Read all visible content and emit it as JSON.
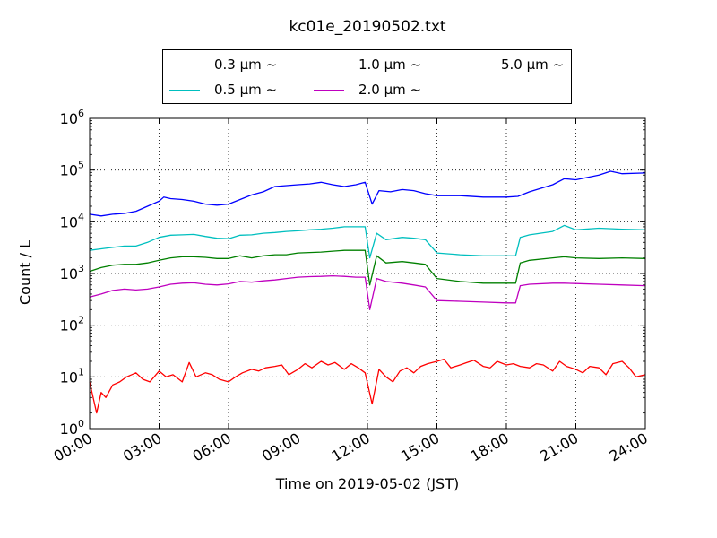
{
  "chart_data": {
    "type": "line",
    "title": "kc01e_20190502.txt",
    "xlabel": "Time on 2019-05-02 (JST)",
    "ylabel": "Count / L",
    "yscale": "log",
    "ylim": [
      1,
      1000000
    ],
    "xlim": [
      "00:00",
      "24:00"
    ],
    "x_unit": "hours",
    "xticks": [
      "00:00",
      "03:00",
      "06:00",
      "09:00",
      "12:00",
      "15:00",
      "18:00",
      "21:00",
      "24:00"
    ],
    "yticks": [
      {
        "base": "10",
        "exp": "0",
        "value": 1
      },
      {
        "base": "10",
        "exp": "1",
        "value": 10
      },
      {
        "base": "10",
        "exp": "2",
        "value": 100
      },
      {
        "base": "10",
        "exp": "3",
        "value": 1000
      },
      {
        "base": "10",
        "exp": "4",
        "value": 10000
      },
      {
        "base": "10",
        "exp": "5",
        "value": 100000
      },
      {
        "base": "10",
        "exp": "6",
        "value": 1000000
      }
    ],
    "grid": true,
    "legend_position": "top",
    "series": [
      {
        "name": "0.3 μm ~",
        "color": "#0000ff",
        "x_hours": [
          0,
          0.5,
          1,
          1.5,
          2,
          2.5,
          3,
          3.2,
          3.5,
          4,
          4.5,
          5,
          5.5,
          6,
          6.5,
          7,
          7.5,
          8,
          8.5,
          9,
          9.5,
          10,
          10.5,
          11,
          11.5,
          11.9,
          12.2,
          12.5,
          13,
          13.5,
          14,
          14.5,
          15,
          16,
          17,
          18,
          18.5,
          19,
          20,
          20.5,
          21,
          22,
          22.5,
          23,
          24
        ],
        "values": [
          14000,
          13000,
          14000,
          14500,
          16000,
          20000,
          25000,
          30000,
          28000,
          27000,
          25000,
          22000,
          21000,
          22000,
          27000,
          33000,
          38000,
          48000,
          50000,
          52000,
          54000,
          58000,
          52000,
          48000,
          52000,
          58000,
          22000,
          40000,
          38000,
          42000,
          40000,
          35000,
          32000,
          32000,
          30000,
          30000,
          31000,
          38000,
          52000,
          68000,
          65000,
          80000,
          95000,
          85000,
          88000
        ]
      },
      {
        "name": "1.0 μm ~",
        "color": "#008000",
        "x_hours": [
          0,
          0.5,
          1,
          1.5,
          2,
          2.5,
          3,
          3.5,
          4,
          4.5,
          5,
          5.5,
          6,
          6.5,
          7,
          7.5,
          8,
          8.5,
          9,
          9.5,
          10,
          10.5,
          11,
          11.5,
          11.9,
          12.1,
          12.4,
          12.8,
          13.5,
          14,
          14.5,
          15,
          16,
          17,
          18,
          18.4,
          18.6,
          19,
          20,
          20.5,
          21,
          22,
          23,
          24
        ],
        "values": [
          1100,
          1300,
          1450,
          1500,
          1500,
          1600,
          1800,
          2000,
          2100,
          2100,
          2050,
          1950,
          1950,
          2200,
          2000,
          2200,
          2300,
          2300,
          2500,
          2550,
          2600,
          2700,
          2800,
          2800,
          2800,
          600,
          2200,
          1600,
          1700,
          1600,
          1500,
          800,
          700,
          650,
          650,
          650,
          1600,
          1800,
          2000,
          2100,
          2000,
          1950,
          2000,
          1950
        ]
      },
      {
        "name": "0.5 μm ~",
        "color": "#00bfbf",
        "x_hours": [
          0,
          0.5,
          1,
          1.5,
          2,
          2.5,
          3,
          3.5,
          4,
          4.5,
          5,
          5.5,
          6,
          6.5,
          7,
          7.5,
          8,
          8.5,
          9,
          9.5,
          10,
          10.5,
          11,
          11.5,
          11.9,
          12.1,
          12.4,
          12.8,
          13.5,
          14,
          14.5,
          15,
          16,
          17,
          18,
          18.4,
          18.6,
          19,
          20,
          20.5,
          21,
          22,
          23,
          24
        ],
        "values": [
          2800,
          3000,
          3200,
          3400,
          3400,
          4000,
          5000,
          5500,
          5600,
          5700,
          5200,
          4800,
          4700,
          5500,
          5600,
          6000,
          6200,
          6500,
          6700,
          7000,
          7200,
          7500,
          8000,
          8000,
          8000,
          2000,
          6000,
          4500,
          5000,
          4800,
          4500,
          2500,
          2300,
          2200,
          2200,
          2200,
          5000,
          5600,
          6500,
          8500,
          7000,
          7500,
          7200,
          7000
        ]
      },
      {
        "name": "2.0 μm ~",
        "color": "#bf00bf",
        "x_hours": [
          0,
          0.5,
          1,
          1.5,
          2,
          2.5,
          3,
          3.5,
          4,
          4.5,
          5,
          5.5,
          6,
          6.5,
          7,
          7.5,
          8,
          8.5,
          9,
          9.5,
          10,
          10.5,
          11,
          11.5,
          11.9,
          12.1,
          12.4,
          12.8,
          13.5,
          14,
          14.5,
          15,
          16,
          17,
          18,
          18.4,
          18.6,
          19,
          20,
          20.5,
          21,
          22,
          23,
          24
        ],
        "values": [
          350,
          400,
          470,
          500,
          480,
          500,
          550,
          620,
          650,
          660,
          620,
          600,
          630,
          700,
          680,
          720,
          750,
          800,
          850,
          870,
          880,
          900,
          880,
          850,
          850,
          200,
          800,
          700,
          650,
          600,
          550,
          300,
          290,
          280,
          270,
          270,
          580,
          620,
          650,
          650,
          640,
          620,
          600,
          580
        ]
      },
      {
        "name": "5.0 μm ~",
        "color": "#ff0000",
        "x_hours": [
          0,
          0.3,
          0.5,
          0.7,
          1,
          1.3,
          1.6,
          2,
          2.3,
          2.6,
          3,
          3.3,
          3.6,
          4,
          4.3,
          4.6,
          5,
          5.3,
          5.6,
          6,
          6.3,
          6.6,
          7,
          7.3,
          7.6,
          8,
          8.3,
          8.6,
          9,
          9.3,
          9.6,
          10,
          10.3,
          10.6,
          11,
          11.3,
          11.6,
          11.9,
          12.2,
          12.5,
          12.8,
          13.1,
          13.4,
          13.7,
          14,
          14.3,
          14.6,
          15,
          15.3,
          15.6,
          16,
          16.3,
          16.6,
          17,
          17.3,
          17.6,
          18,
          18.3,
          18.6,
          19,
          19.3,
          19.6,
          20,
          20.3,
          20.6,
          21,
          21.3,
          21.6,
          22,
          22.3,
          22.6,
          23,
          23.3,
          23.6,
          24
        ],
        "values": [
          8,
          2,
          5,
          4,
          7,
          8,
          10,
          12,
          9,
          8,
          13,
          10,
          11,
          8,
          19,
          10,
          12,
          11,
          9,
          8,
          10,
          12,
          14,
          13,
          15,
          16,
          17,
          11,
          14,
          18,
          15,
          20,
          17,
          19,
          14,
          18,
          15,
          12,
          3,
          14,
          10,
          8,
          13,
          15,
          12,
          16,
          18,
          20,
          22,
          15,
          17,
          19,
          21,
          16,
          15,
          20,
          17,
          18,
          16,
          15,
          18,
          17,
          13,
          20,
          16,
          14,
          12,
          16,
          15,
          11,
          18,
          20,
          15,
          10,
          11
        ]
      }
    ]
  },
  "legend": {
    "entries": [
      {
        "label": "0.3 μm ~",
        "color": "#0000ff"
      },
      {
        "label": "1.0 μm ~",
        "color": "#008000"
      },
      {
        "label": "5.0 μm ~",
        "color": "#ff0000"
      },
      {
        "label": "0.5 μm ~",
        "color": "#00bfbf"
      },
      {
        "label": "2.0 μm ~",
        "color": "#bf00bf"
      }
    ]
  }
}
